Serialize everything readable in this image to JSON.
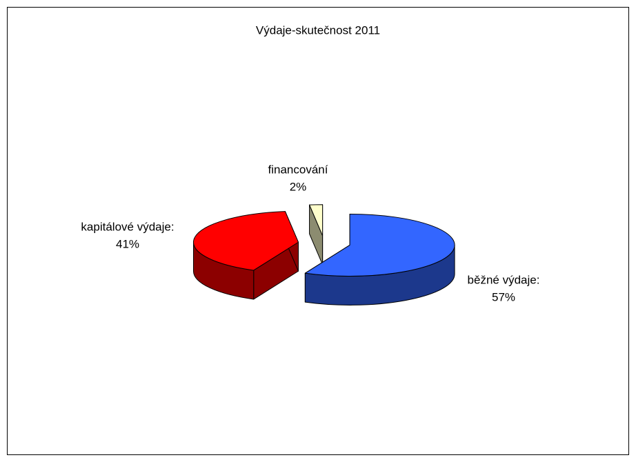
{
  "chart_data": {
    "type": "pie3d",
    "title": "Výdaje-skutečnost 2011",
    "categories": [
      "běžné výdaje:",
      "kapitálové výdaje:",
      "financování"
    ],
    "values": [
      57,
      41,
      2
    ],
    "value_labels": [
      "57%",
      "41%",
      "2%"
    ],
    "colors": [
      "#3366ff",
      "#ff0000",
      "#ffffcc"
    ]
  }
}
